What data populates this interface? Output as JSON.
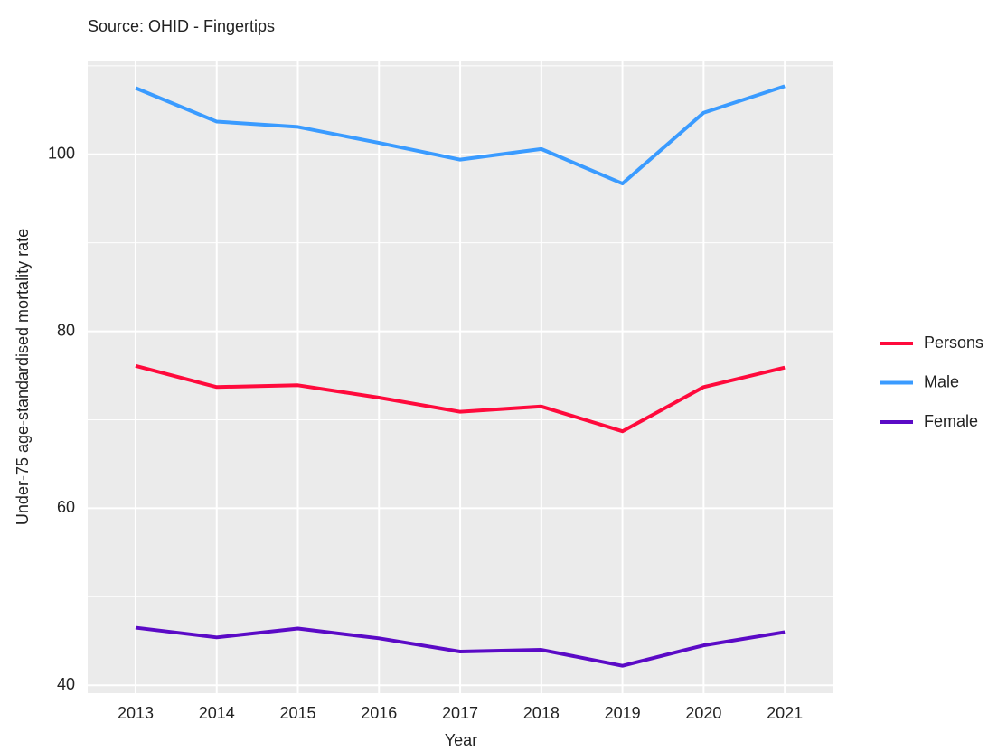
{
  "chart_data": {
    "type": "line",
    "caption": "Source: OHID - Fingertips",
    "x_label": "Year",
    "y_label": "Under-75 age-standardised mortality rate",
    "x": [
      2013,
      2014,
      2015,
      2016,
      2017,
      2018,
      2019,
      2020,
      2021
    ],
    "series": [
      {
        "name": "Persons",
        "color": "#ff0a3c",
        "values": [
          76.1,
          73.7,
          73.9,
          72.5,
          70.9,
          71.5,
          68.7,
          73.7,
          75.9
        ]
      },
      {
        "name": "Male",
        "color": "#3a9bff",
        "values": [
          107.5,
          103.7,
          103.1,
          101.3,
          99.4,
          100.6,
          96.7,
          104.7,
          107.7
        ]
      },
      {
        "name": "Female",
        "color": "#5b0ac6",
        "values": [
          46.5,
          45.4,
          46.4,
          45.3,
          43.8,
          44.0,
          42.2,
          44.5,
          46.0
        ]
      }
    ],
    "xlim": [
      2012.41,
      2021.6
    ],
    "xticks": [
      2013,
      2014,
      2015,
      2016,
      2017,
      2018,
      2019,
      2020,
      2021
    ],
    "ylim": [
      39.1,
      110.6
    ],
    "yticks": [
      40,
      60,
      80,
      100
    ],
    "minor_yticks": [
      50,
      70,
      90,
      110
    ],
    "grid": true,
    "legend": "right"
  }
}
